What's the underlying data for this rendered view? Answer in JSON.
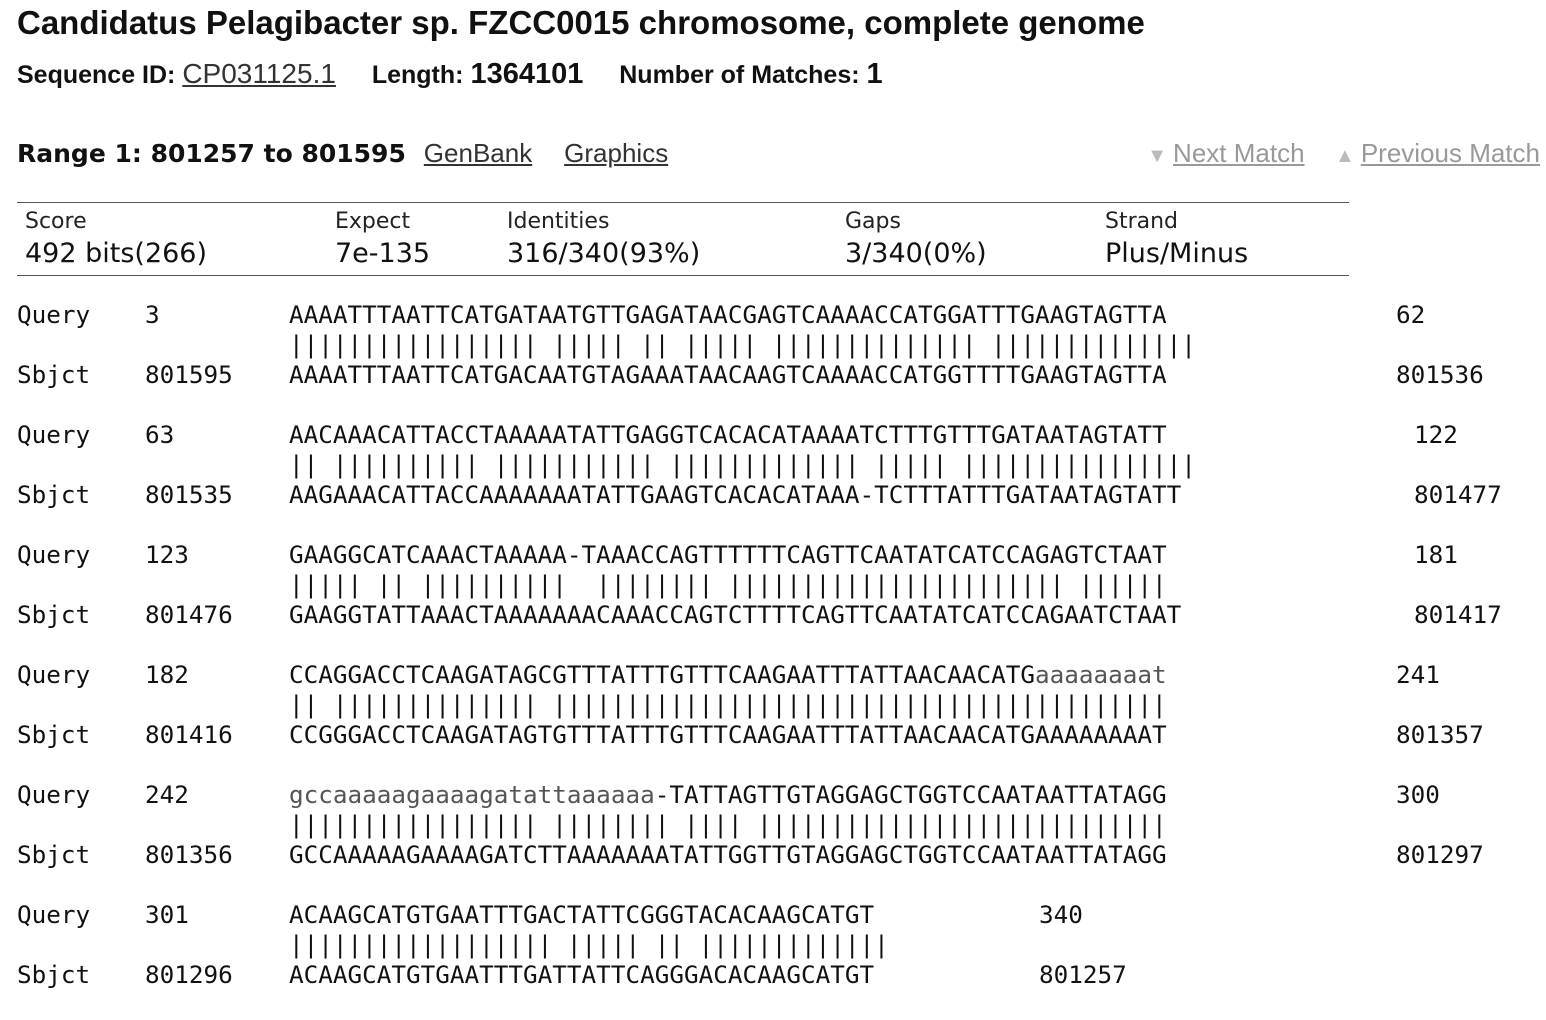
{
  "title": "Candidatus Pelagibacter sp. FZCC0015 chromosome, complete genome",
  "sequence_info": {
    "id_label": "Sequence ID:",
    "id_value": "CP031125.1",
    "length_label": "Length:",
    "length_value": "1364101",
    "matches_label": "Number of Matches:",
    "matches_value": "1"
  },
  "range": {
    "label": "Range 1: 801257 to 801595",
    "genbank_link": "GenBank",
    "graphics_link": "Graphics",
    "next_match": "Next Match",
    "previous_match": "Previous Match"
  },
  "stats": {
    "score_label": "Score",
    "score_value": "492 bits(266)",
    "expect_label": "Expect",
    "expect_value": "7e-135",
    "identities_label": "Identities",
    "identities_value": "316/340(93%)",
    "gaps_label": "Gaps",
    "gaps_value": "3/340(0%)",
    "strand_label": "Strand",
    "strand_value": "Plus/Minus"
  },
  "alignment": [
    {
      "q_label": "Query",
      "q_start": "3",
      "q_upper": "AAAATTTAATTCATGATAATGTTGAGATAACGAGTCAAAACCATGGATTTGAAGTAGTTA",
      "q_lower": "",
      "q_end": "62",
      "mid": "||||||||||||||||| ||||| || ||||| |||||||||||||| ||||||||||||||",
      "s_label": "Sbjct",
      "s_start": "801595",
      "s_seq": "AAAATTTAATTCATGACAATGTAGAAATAACAAGTCAAAACCATGGTTTTGAAGTAGTTA",
      "s_end": "801536"
    },
    {
      "q_label": "Query",
      "q_start": "63",
      "q_upper": "AACAAACATTACCTAAAAATATTGAGGTCACACATAAAATCTTTGTTTGATAATAGTATT",
      "q_lower": "",
      "q_end": "122",
      "mid": "|| |||||||||| ||||||||||| ||||||||||||| ||||| ||||||||||||||||",
      "s_label": "Sbjct",
      "s_start": "801535",
      "s_seq": "AAGAAACATTACCAAAAAAATATTGAAGTCACACATAAA-TCTTTATTTGATAATAGTATT",
      "s_end": "801477"
    },
    {
      "q_label": "Query",
      "q_start": "123",
      "q_upper": "GAAGGCATCAAACTAAAAA-TAAACCAGTTTTTTCAGTTCAATATCATCCAGAGTCTAAT",
      "q_lower": "",
      "q_end": "181",
      "mid": "||||| || ||||||||||  |||||||| ||||||||||||||||||||||| ||||||",
      "s_label": "Sbjct",
      "s_start": "801476",
      "s_seq": "GAAGGTATTAAACTAAAAAAACAAACCAGTCTTTTCAGTTCAATATCATCCAGAATCTAAT",
      "s_end": "801417"
    },
    {
      "q_label": "Query",
      "q_start": "182",
      "q_upper": "CCAGGACCTCAAGATAGCGTTTATTTGTTTCAAGAATTTATTAACAACATG",
      "q_lower": "aaaaaaaat",
      "q_end": "241",
      "mid": "|| |||||||||||||| ||||||||||||||||||||||||||||||||||||||||||",
      "s_label": "Sbjct",
      "s_start": "801416",
      "s_seq": "CCGGGACCTCAAGATAGTGTTTATTTGTTTCAAGAATTTATTAACAACATGAAAAAAAAT",
      "s_end": "801357"
    },
    {
      "q_label": "Query",
      "q_start": "242",
      "q_upper": "",
      "q_lower": "gccaaaaagaaaagatattaaaaaa",
      "q_tail": "-TATTAGTTGTAGGAGCTGGTCCAATAATTATAGG",
      "q_end": "300",
      "mid": "||||||||||||||||| |||||||| |||| ||||||||||||||||||||||||||||",
      "s_label": "Sbjct",
      "s_start": "801356",
      "s_seq": "GCCAAAAAGAAAAGATCTTAAAAAAATATTGGTTGTAGGAGCTGGTCCAATAATTATAGG",
      "s_end": "801297"
    },
    {
      "q_label": "Query",
      "q_start": "301",
      "q_upper": "ACAAGCATGTGAATTTGACTATTCGGGTACACAAGCATGT",
      "q_lower": "",
      "q_end": "340",
      "mid": "|||||||||||||||||| ||||| || |||||||||||||",
      "s_label": "Sbjct",
      "s_start": "801296",
      "s_seq": "ACAAGCATGTGAATTTGATTATTCAGGGACACAAGCATGT",
      "s_end": "801257"
    }
  ]
}
